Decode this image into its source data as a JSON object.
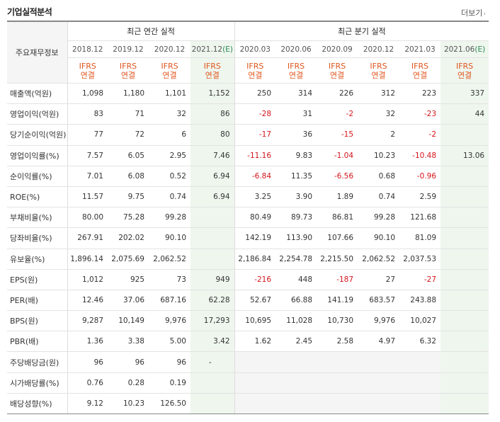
{
  "header": {
    "title": "기업실적분석",
    "more_label": "더보기",
    "more_arrow": "›"
  },
  "table": {
    "label_header": "주요재무정보",
    "annual_group": "최근 연간 실적",
    "quarter_group": "최근 분기 실적",
    "periods": [
      {
        "date": "2018.12"
      },
      {
        "date": "2019.12"
      },
      {
        "date": "2020.12"
      },
      {
        "date": "2021.12",
        "e": "(E)"
      },
      {
        "date": "2020.03"
      },
      {
        "date": "2020.06"
      },
      {
        "date": "2020.09"
      },
      {
        "date": "2020.12"
      },
      {
        "date": "2021.03"
      },
      {
        "date": "2021.06",
        "e": "(E)"
      }
    ],
    "ifrs": [
      "IFRS",
      "연결"
    ],
    "rows": [
      {
        "label": "매출액(억원)",
        "values": [
          "1,098",
          "1,180",
          "1,101",
          "1,152",
          "250",
          "314",
          "226",
          "312",
          "223",
          "337"
        ]
      },
      {
        "label": "영업이익(억원)",
        "values": [
          "83",
          "71",
          "32",
          "86",
          "-28",
          "31",
          "-2",
          "32",
          "-23",
          "44"
        ]
      },
      {
        "label": "당기순이익(억원)",
        "values": [
          "77",
          "72",
          "6",
          "80",
          "-17",
          "36",
          "-15",
          "2",
          "-2",
          ""
        ]
      },
      {
        "label": "영업이익률(%)",
        "values": [
          "7.57",
          "6.05",
          "2.95",
          "7.46",
          "-11.16",
          "9.83",
          "-1.04",
          "10.23",
          "-10.48",
          "13.06"
        ]
      },
      {
        "label": "순이익률(%)",
        "values": [
          "7.01",
          "6.08",
          "0.52",
          "6.94",
          "-6.84",
          "11.35",
          "-6.56",
          "0.68",
          "-0.96",
          ""
        ]
      },
      {
        "label": "ROE(%)",
        "values": [
          "11.57",
          "9.75",
          "0.74",
          "6.94",
          "3.25",
          "3.90",
          "1.89",
          "0.74",
          "2.59",
          ""
        ]
      },
      {
        "label": "부채비율(%)",
        "values": [
          "80.00",
          "75.28",
          "99.28",
          "",
          "80.49",
          "89.73",
          "86.81",
          "99.28",
          "121.68",
          ""
        ]
      },
      {
        "label": "당좌비율(%)",
        "values": [
          "267.91",
          "202.02",
          "90.10",
          "",
          "142.19",
          "113.90",
          "107.66",
          "90.10",
          "81.09",
          ""
        ]
      },
      {
        "label": "유보율(%)",
        "values": [
          "1,896.14",
          "2,075.69",
          "2,062.52",
          "",
          "2,186.84",
          "2,254.78",
          "2,215.50",
          "2,062.52",
          "2,037.53",
          ""
        ]
      },
      {
        "label": "EPS(원)",
        "values": [
          "1,012",
          "925",
          "73",
          "949",
          "-216",
          "448",
          "-187",
          "27",
          "-27",
          ""
        ]
      },
      {
        "label": "PER(배)",
        "values": [
          "12.46",
          "37.06",
          "687.16",
          "62.28",
          "52.67",
          "66.88",
          "141.19",
          "683.57",
          "243.88",
          ""
        ]
      },
      {
        "label": "BPS(원)",
        "values": [
          "9,287",
          "10,149",
          "9,976",
          "17,293",
          "10,695",
          "11,028",
          "10,730",
          "9,976",
          "10,027",
          ""
        ]
      },
      {
        "label": "PBR(배)",
        "values": [
          "1.36",
          "3.38",
          "5.00",
          "3.42",
          "1.62",
          "2.45",
          "2.58",
          "4.97",
          "6.32",
          ""
        ]
      },
      {
        "label": "주당배당금(원)",
        "values": [
          "96",
          "96",
          "96",
          "-",
          "",
          "",
          "",
          "",
          "",
          ""
        ]
      },
      {
        "label": "시가배당률(%)",
        "values": [
          "0.76",
          "0.28",
          "0.19",
          "",
          "",
          "",
          "",
          "",
          "",
          ""
        ]
      },
      {
        "label": "배당성향(%)",
        "values": [
          "9.12",
          "10.23",
          "126.50",
          "",
          "",
          "",
          "",
          "",
          "",
          ""
        ]
      }
    ]
  },
  "colors": {
    "negative": "#d4141b",
    "ifrs": "#e0561e",
    "estimate_bg": "#eef6ee",
    "estimate_e": "#2e8b57"
  }
}
